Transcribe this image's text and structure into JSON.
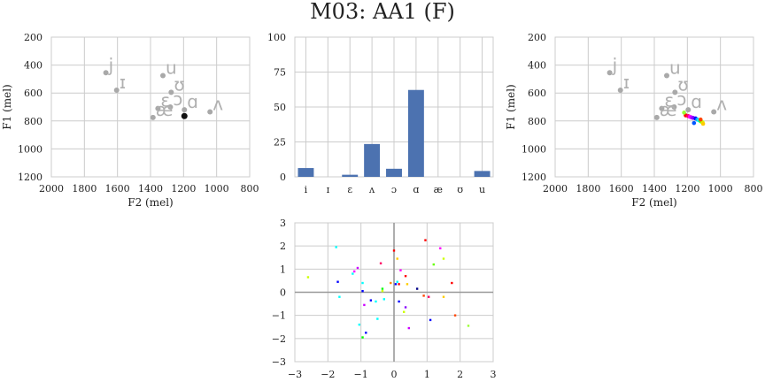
{
  "title": "M03: AA1 (F)",
  "chart_data": [
    {
      "type": "scatter",
      "xlabel": "F2 (mel)",
      "ylabel": "F1 (mel)",
      "xlim": [
        2000,
        800
      ],
      "ylim": [
        1200,
        200
      ],
      "xticks": [
        "2000",
        "1800",
        "1600",
        "1400",
        "1200",
        "1000",
        "800"
      ],
      "yticks": [
        "200",
        "400",
        "600",
        "800",
        "1000",
        "1200"
      ],
      "grid": true,
      "vowels": [
        {
          "symbol": "i",
          "glyph": "j",
          "x": 1670,
          "y": 455
        },
        {
          "symbol": "ɪ",
          "glyph": "ɪ",
          "x": 1605,
          "y": 580
        },
        {
          "symbol": "u",
          "glyph": "u",
          "x": 1325,
          "y": 475
        },
        {
          "symbol": "ʊ",
          "glyph": "ʊ",
          "x": 1275,
          "y": 595
        },
        {
          "symbol": "ɛ",
          "glyph": "ɛ",
          "x": 1355,
          "y": 710
        },
        {
          "symbol": "ɔ",
          "glyph": "ɔ",
          "x": 1280,
          "y": 700
        },
        {
          "symbol": "æ",
          "glyph": "æ",
          "x": 1385,
          "y": 775
        },
        {
          "symbol": "ɑ",
          "glyph": "ɑ",
          "x": 1195,
          "y": 720
        },
        {
          "symbol": "ʌ",
          "glyph": "ʌ",
          "x": 1040,
          "y": 735
        }
      ],
      "current": {
        "x": 1195,
        "y": 765,
        "color": "#111111"
      }
    },
    {
      "type": "bar",
      "categories": [
        "i",
        "ɪ",
        "ɛ",
        "ʌ",
        "ɔ",
        "ɑ",
        "æ",
        "ʊ",
        "u"
      ],
      "values": [
        6.3,
        0,
        1.5,
        23.5,
        5.8,
        62.2,
        0,
        0,
        4.2
      ],
      "ylim": [
        0,
        100
      ],
      "yticks": [
        "0",
        "25",
        "50",
        "75",
        "100"
      ],
      "color": "#4c72b0",
      "grid": true
    },
    {
      "type": "scatter",
      "xlabel": "F2 (mel)",
      "ylabel": "F1 (mel)",
      "xlim": [
        2000,
        800
      ],
      "ylim": [
        1200,
        200
      ],
      "xticks": [
        "2000",
        "1800",
        "1600",
        "1400",
        "1200",
        "1000",
        "800"
      ],
      "yticks": [
        "200",
        "400",
        "600",
        "800",
        "1000",
        "1200"
      ],
      "grid": true,
      "vowels": [
        {
          "symbol": "i",
          "glyph": "j",
          "x": 1670,
          "y": 455
        },
        {
          "symbol": "ɪ",
          "glyph": "ɪ",
          "x": 1605,
          "y": 580
        },
        {
          "symbol": "u",
          "glyph": "u",
          "x": 1325,
          "y": 475
        },
        {
          "symbol": "ʊ",
          "glyph": "ʊ",
          "x": 1275,
          "y": 595
        },
        {
          "symbol": "ɛ",
          "glyph": "ɛ",
          "x": 1355,
          "y": 710
        },
        {
          "symbol": "ɔ",
          "glyph": "ɔ",
          "x": 1280,
          "y": 700
        },
        {
          "symbol": "æ",
          "glyph": "æ",
          "x": 1385,
          "y": 775
        },
        {
          "symbol": "ɑ",
          "glyph": "ɑ",
          "x": 1195,
          "y": 720
        },
        {
          "symbol": "ʌ",
          "glyph": "ʌ",
          "x": 1040,
          "y": 735
        }
      ],
      "trajectory": [
        {
          "x": 1210,
          "y": 760,
          "color": "#ff0000"
        },
        {
          "x": 1195,
          "y": 765,
          "color": "#ff0066"
        },
        {
          "x": 1185,
          "y": 770,
          "color": "#ff00ff"
        },
        {
          "x": 1175,
          "y": 775,
          "color": "#cc00ff"
        },
        {
          "x": 1165,
          "y": 778,
          "color": "#8800ff"
        },
        {
          "x": 1150,
          "y": 782,
          "color": "#0000ff"
        },
        {
          "x": 1160,
          "y": 815,
          "color": "#0055ff"
        },
        {
          "x": 1140,
          "y": 790,
          "color": "#00aaff"
        },
        {
          "x": 1130,
          "y": 795,
          "color": "#00ffff"
        },
        {
          "x": 1122,
          "y": 800,
          "color": "#00ff88"
        },
        {
          "x": 1115,
          "y": 805,
          "color": "#66ff00"
        },
        {
          "x": 1108,
          "y": 810,
          "color": "#ccff00"
        },
        {
          "x": 1105,
          "y": 820,
          "color": "#ffcc00"
        },
        {
          "x": 1220,
          "y": 740,
          "color": "#99ff33"
        },
        {
          "x": 1120,
          "y": 790,
          "color": "#ff4400"
        }
      ]
    },
    {
      "type": "scatter",
      "xlim": [
        -3,
        3
      ],
      "ylim": [
        -3,
        3
      ],
      "xticks": [
        "−3",
        "−2",
        "−1",
        "0",
        "1",
        "2",
        "3"
      ],
      "yticks": [
        "−3",
        "−2",
        "−1",
        "0",
        "1",
        "2",
        "3"
      ],
      "grid": true,
      "points": [
        {
          "x": -1.75,
          "y": 1.95,
          "c": "#00ffff"
        },
        {
          "x": -1.7,
          "y": 0.45,
          "c": "#0000ff"
        },
        {
          "x": -1.65,
          "y": -0.2,
          "c": "#00ffff"
        },
        {
          "x": -2.6,
          "y": 0.65,
          "c": "#ccff00"
        },
        {
          "x": -1.25,
          "y": 0.8,
          "c": "#00ffff"
        },
        {
          "x": -1.2,
          "y": 0.9,
          "c": "#ff00ff"
        },
        {
          "x": -1.1,
          "y": 1.05,
          "c": "#cc00ff"
        },
        {
          "x": -1.05,
          "y": -1.4,
          "c": "#00ffff"
        },
        {
          "x": -0.95,
          "y": 0.4,
          "c": "#00ffff"
        },
        {
          "x": -0.95,
          "y": 0.05,
          "c": "#0000ff"
        },
        {
          "x": -0.9,
          "y": -0.55,
          "c": "#cc00ff"
        },
        {
          "x": -0.95,
          "y": -1.95,
          "c": "#00ff00"
        },
        {
          "x": -0.85,
          "y": -1.75,
          "c": "#0000ff"
        },
        {
          "x": -0.7,
          "y": -0.35,
          "c": "#0000ff"
        },
        {
          "x": -0.55,
          "y": -0.4,
          "c": "#00ffff"
        },
        {
          "x": -0.5,
          "y": -1.15,
          "c": "#00ffff"
        },
        {
          "x": -0.4,
          "y": 1.25,
          "c": "#ff0066"
        },
        {
          "x": -0.35,
          "y": 0.15,
          "c": "#00ff00"
        },
        {
          "x": -0.3,
          "y": -0.3,
          "c": "#00ffff"
        },
        {
          "x": -0.35,
          "y": 0.05,
          "c": "#ccff00"
        },
        {
          "x": -0.1,
          "y": 0.4,
          "c": "#ff8800"
        },
        {
          "x": 0.0,
          "y": 1.8,
          "c": "#ff0000"
        },
        {
          "x": 0.05,
          "y": 0.35,
          "c": "#0000ff"
        },
        {
          "x": 0.1,
          "y": 0.45,
          "c": "#00ffff"
        },
        {
          "x": 0.1,
          "y": 1.45,
          "c": "#ffcc00"
        },
        {
          "x": 0.15,
          "y": 0.35,
          "c": "#ff0000"
        },
        {
          "x": 0.15,
          "y": -0.4,
          "c": "#0000ff"
        },
        {
          "x": 0.2,
          "y": 0.95,
          "c": "#ff00ff"
        },
        {
          "x": 0.3,
          "y": -0.85,
          "c": "#ccff00"
        },
        {
          "x": 0.35,
          "y": 0.7,
          "c": "#ff0000"
        },
        {
          "x": 0.35,
          "y": -0.65,
          "c": "#8800ff"
        },
        {
          "x": 0.4,
          "y": 0.35,
          "c": "#ffcc00"
        },
        {
          "x": 0.45,
          "y": -1.55,
          "c": "#cc00ff"
        },
        {
          "x": 0.7,
          "y": 0.15,
          "c": "#000088"
        },
        {
          "x": 0.9,
          "y": -0.15,
          "c": "#ff4400"
        },
        {
          "x": 0.95,
          "y": 2.25,
          "c": "#ff0000"
        },
        {
          "x": 1.05,
          "y": -0.2,
          "c": "#ff0066"
        },
        {
          "x": 1.1,
          "y": -1.2,
          "c": "#0000ff"
        },
        {
          "x": 1.2,
          "y": 1.2,
          "c": "#66ff00"
        },
        {
          "x": 1.4,
          "y": 1.9,
          "c": "#ff00ff"
        },
        {
          "x": 1.5,
          "y": 1.45,
          "c": "#ccff00"
        },
        {
          "x": 1.5,
          "y": -0.2,
          "c": "#ffcc00"
        },
        {
          "x": 1.75,
          "y": 0.4,
          "c": "#ff0000"
        },
        {
          "x": 1.85,
          "y": -1.0,
          "c": "#ff4400"
        },
        {
          "x": 2.25,
          "y": -1.45,
          "c": "#99ff33"
        }
      ]
    }
  ]
}
